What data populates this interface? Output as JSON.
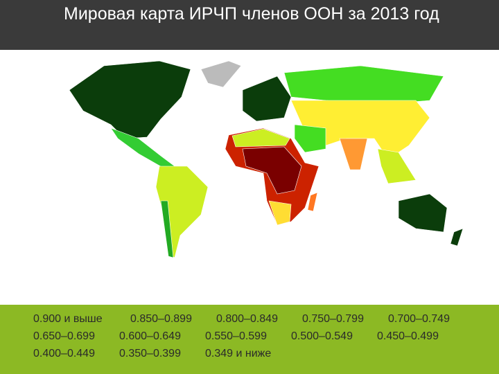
{
  "header": {
    "title": "Мировая карта ИРЧП членов ООН за 2013 год"
  },
  "legend": {
    "items": [
      "0.900 и выше",
      "0.850–0.899",
      "0.800–0.849",
      "0.750–0.799",
      "0.700–0.749",
      "0.650–0.699",
      "0.600–0.649",
      "0.550–0.599",
      "0.500–0.549",
      "0.450–0.499",
      "0.400–0.449",
      "0.350–0.399",
      "0.349 и ниже"
    ]
  }
}
